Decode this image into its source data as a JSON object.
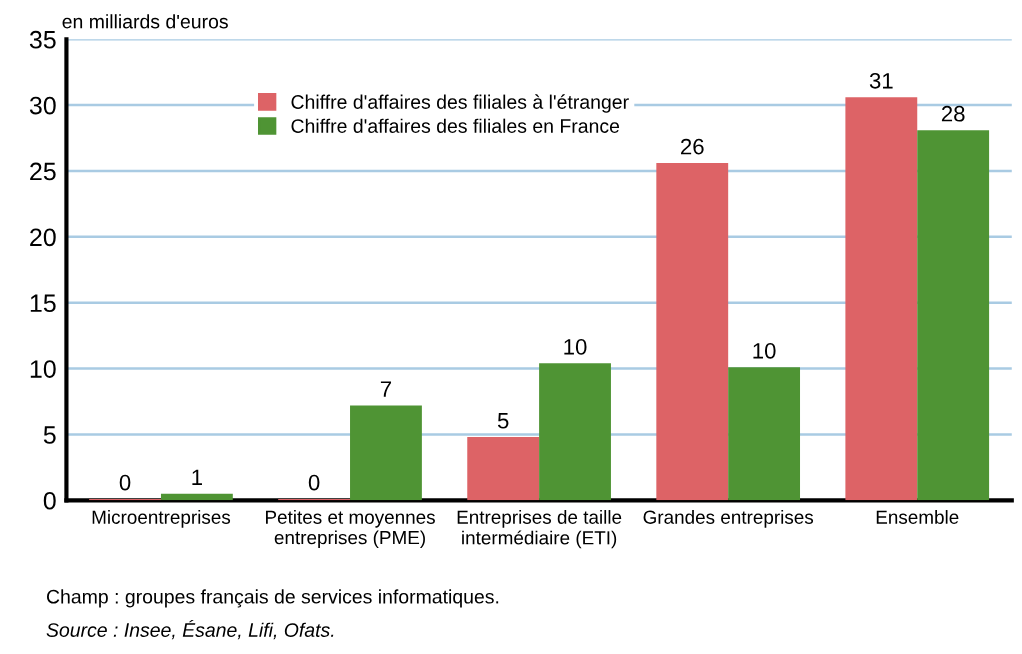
{
  "chart_data": {
    "type": "bar",
    "ylabel": "en milliards d'euros",
    "categories": [
      "Microentreprises",
      "Petites et moyennes\nentreprises (PME)",
      "Entreprises de taille\nintermédiaire (ETI)",
      "Grandes entreprises",
      "Ensemble"
    ],
    "series": [
      {
        "name": "Chiffre d'affaires des filiales à l'étranger",
        "color": "#dd6366",
        "values": [
          0.1,
          0.1,
          4.8,
          25.6,
          30.6
        ],
        "value_labels": [
          "0",
          "0",
          "5",
          "26",
          "31"
        ]
      },
      {
        "name": "Chiffre d'affaires des filiales en France",
        "color": "#4f9434",
        "values": [
          0.5,
          7.2,
          10.4,
          10.1,
          28.1
        ],
        "value_labels": [
          "1",
          "7",
          "10",
          "10",
          "28"
        ]
      }
    ],
    "ylim": [
      0,
      35
    ],
    "yticks": [
      0,
      5,
      10,
      15,
      20,
      25,
      30,
      35
    ],
    "grid": "y",
    "legend": "top",
    "annotations": [
      "Champ : groupes français de services informatiques.",
      "Source : Insee, Ésane, Lifi, Ofats."
    ]
  }
}
